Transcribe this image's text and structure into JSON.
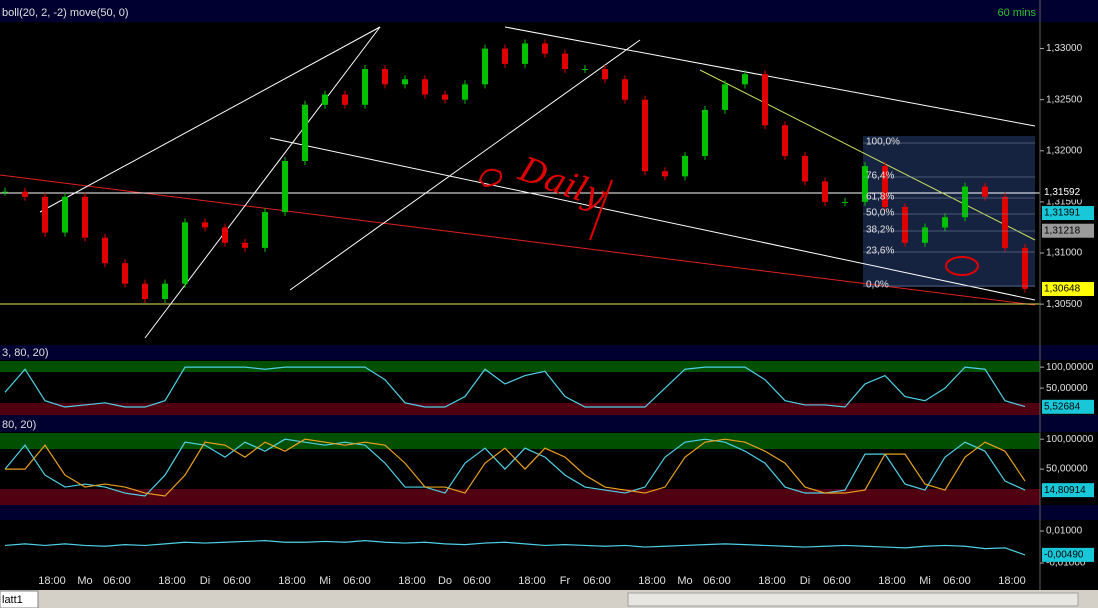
{
  "window": {
    "indicator": "boll(20, 2, -2) move(50, 0)",
    "timeframe": "60 mins",
    "panel2_label": "3, 80, 20)",
    "panel3_label": "80, 20)",
    "tab": "latt1",
    "annotation": "Daily"
  },
  "fib_levels": [
    "100,0%",
    "76,4%",
    "61,8%",
    "50,0%",
    "38,2%",
    "23,6%",
    "0,0%"
  ],
  "time_axis": [
    {
      "time": "18:00",
      "day": "Mo",
      "time2": "06:00"
    },
    {
      "time": "18:00",
      "day": "Di",
      "time2": "06:00"
    },
    {
      "time": "18:00",
      "day": "Mi",
      "time2": "06:00"
    },
    {
      "time": "18:00",
      "day": "Do",
      "time2": "06:00"
    },
    {
      "time": "18:00",
      "day": "Fr",
      "time2": "06:00"
    },
    {
      "time": "18:00",
      "day": "Mo",
      "time2": "06:00"
    },
    {
      "time": "18:00",
      "day": "Di",
      "time2": "06:00"
    },
    {
      "time": "18:00",
      "day": "Mi",
      "time2": "06:00"
    },
    {
      "time": "18:00"
    }
  ],
  "chart_data": [
    {
      "type": "candlestick",
      "values": [
        1.316,
        1.3155,
        1.312,
        1.3155,
        1.3115,
        1.309,
        1.307,
        1.3055,
        1.307,
        1.313,
        1.3125,
        1.311,
        1.3105,
        1.314,
        1.319,
        1.3245,
        1.3255,
        1.3245,
        1.328,
        1.3265,
        1.327,
        1.3255,
        1.325,
        1.3265,
        1.33,
        1.3285,
        1.3305,
        1.3295,
        1.328,
        1.328,
        1.327,
        1.325,
        1.318,
        1.3175,
        1.3195,
        1.324,
        1.3265,
        1.3275,
        1.3225,
        1.3195,
        1.317,
        1.315,
        1.315,
        1.3185,
        1.3145,
        1.311,
        1.3125,
        1.3135,
        1.3165,
        1.3155,
        1.3105,
        1.3065
      ],
      "ylim": [
        1.301,
        1.3326
      ],
      "yticks": [
        {
          "value": 1.33,
          "label": "1,33000"
        },
        {
          "value": 1.325,
          "label": "1,32500"
        },
        {
          "value": 1.32,
          "label": "1,32000"
        },
        {
          "value": 1.315,
          "label": "1,31500"
        },
        {
          "value": 1.31,
          "label": "1,31000"
        },
        {
          "value": 1.305,
          "label": "1,30500"
        }
      ],
      "markers": [
        {
          "value": 1.31592,
          "label": "1,31592",
          "color": "#000000"
        },
        {
          "value": 1.31391,
          "label": "1,31391",
          "color": "#19c8d8"
        },
        {
          "value": 1.31218,
          "label": "1,31218",
          "color": "#9a9a9a"
        },
        {
          "value": 1.30648,
          "label": "1,30648",
          "color": "#ffff00"
        }
      ]
    },
    {
      "type": "line",
      "ylim": [
        -14,
        117
      ],
      "series": [
        {
          "color": "#4fd0e6",
          "values": [
            40,
            95,
            20,
            5,
            10,
            15,
            5,
            5,
            20,
            100,
            100,
            100,
            100,
            95,
            100,
            100,
            100,
            100,
            100,
            70,
            15,
            5,
            5,
            30,
            95,
            60,
            80,
            90,
            30,
            5,
            5,
            5,
            5,
            50,
            95,
            100,
            100,
            100,
            70,
            20,
            10,
            10,
            5,
            60,
            80,
            30,
            20,
            50,
            100,
            95,
            20,
            6
          ]
        }
      ],
      "yticks": [
        {
          "value": 100,
          "label": "100,00000"
        },
        {
          "value": 50,
          "label": "50,00000"
        }
      ],
      "markers": [
        {
          "value": 5.52684,
          "label": "5,52684",
          "color": "#19c8d8"
        }
      ]
    },
    {
      "type": "line",
      "ylim": [
        -10,
        112
      ],
      "series": [
        {
          "color": "#4fd0e6",
          "values": [
            50,
            90,
            40,
            20,
            25,
            20,
            10,
            5,
            40,
            95,
            90,
            70,
            95,
            80,
            100,
            95,
            90,
            95,
            90,
            60,
            20,
            20,
            10,
            60,
            85,
            50,
            85,
            70,
            40,
            20,
            15,
            10,
            20,
            70,
            95,
            100,
            95,
            80,
            60,
            20,
            10,
            10,
            15,
            75,
            75,
            25,
            15,
            70,
            95,
            80,
            30,
            15
          ]
        },
        {
          "color": "#e8a020",
          "values": [
            50,
            50,
            90,
            40,
            20,
            25,
            20,
            10,
            5,
            40,
            95,
            90,
            70,
            95,
            80,
            100,
            95,
            90,
            95,
            90,
            60,
            20,
            20,
            10,
            60,
            85,
            50,
            85,
            70,
            40,
            20,
            15,
            10,
            20,
            70,
            95,
            100,
            95,
            80,
            60,
            20,
            10,
            10,
            15,
            75,
            75,
            25,
            15,
            70,
            95,
            80,
            30
          ]
        }
      ],
      "yticks": [
        {
          "value": 100,
          "label": "100,00000"
        },
        {
          "value": 50,
          "label": "50,00000"
        }
      ],
      "markers": [
        {
          "value": 14.80914,
          "label": "14,80914",
          "color": "#19c8d8"
        }
      ]
    },
    {
      "type": "line",
      "ylim": [
        -0.0156,
        0.0169
      ],
      "series": [
        {
          "color": "#4fd0e6",
          "values": [
            0.001,
            0.002,
            0.001,
            0.002,
            0.001,
            0.0005,
            0.0015,
            0.001,
            0.002,
            0.003,
            0.0025,
            0.003,
            0.0035,
            0.004,
            0.003,
            0.003,
            0.0035,
            0.003,
            0.004,
            0.003,
            0.0025,
            0.003,
            0.002,
            0.0015,
            0.0025,
            0.003,
            0.002,
            0.001,
            0.0015,
            0.001,
            0.0005,
            0.001,
            0.0,
            0.0005,
            0.001,
            0.0015,
            0.002,
            0.0015,
            0.001,
            0.0005,
            0.0,
            0.0005,
            0.001,
            0.0005,
            0.0,
            -0.0005,
            0.0005,
            0.001,
            0.0005,
            -0.001,
            -0.0005,
            -0.0049
          ]
        }
      ],
      "yticks": [
        {
          "value": 0.01,
          "label": "0,01000"
        },
        {
          "value": -0.01,
          "label": "-0,01000"
        }
      ],
      "markers": [
        {
          "value": -0.0049,
          "label": "-0,00490",
          "color": "#19c8d8"
        }
      ]
    }
  ]
}
